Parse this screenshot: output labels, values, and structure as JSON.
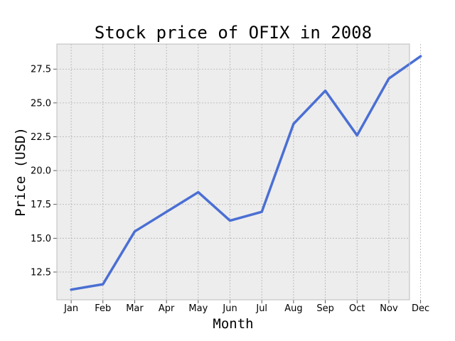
{
  "chart_data": {
    "type": "line",
    "title": "Stock price of OFIX in 2008",
    "xlabel": "Month",
    "ylabel": "Price (USD)",
    "categories": [
      "Jan",
      "Feb",
      "Mar",
      "Apr",
      "May",
      "Jun",
      "Jul",
      "Aug",
      "Sep",
      "Oct",
      "Nov",
      "Dec"
    ],
    "series": [
      {
        "values": [
          11.2,
          11.6,
          15.5,
          16.95,
          18.4,
          16.3,
          16.95,
          23.45,
          25.9,
          22.6,
          26.8,
          28.45
        ]
      }
    ],
    "yticks": [
      "12.5",
      "15.0",
      "17.5",
      "20.0",
      "22.5",
      "25.0",
      "27.5"
    ],
    "ylim": [
      10.45,
      29.35
    ],
    "grid": true,
    "legend": "none",
    "colors": {
      "line": "#4a6fd4",
      "plot_background": "#ededed",
      "grid": "#b0b0b0",
      "frame": "#bcbcbc"
    }
  }
}
